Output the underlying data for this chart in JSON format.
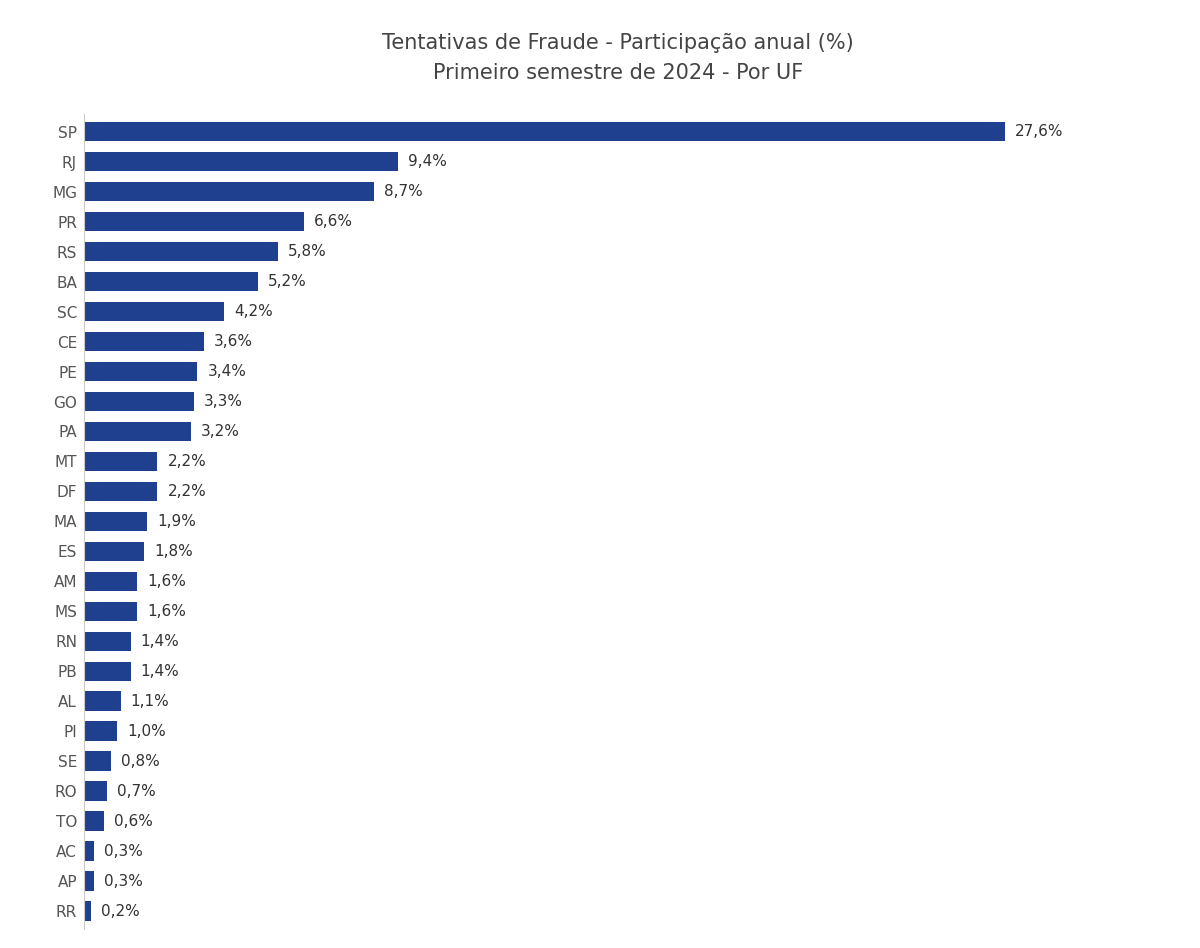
{
  "title_line1": "Tentativas de Fraude - Participação anual (%)",
  "title_line2": "Primeiro semestre de 2024 - Por UF",
  "categories": [
    "SP",
    "RJ",
    "MG",
    "PR",
    "RS",
    "BA",
    "SC",
    "CE",
    "PE",
    "GO",
    "PA",
    "MT",
    "DF",
    "MA",
    "ES",
    "AM",
    "MS",
    "RN",
    "PB",
    "AL",
    "PI",
    "SE",
    "RO",
    "TO",
    "AC",
    "AP",
    "RR"
  ],
  "values": [
    27.6,
    9.4,
    8.7,
    6.6,
    5.8,
    5.2,
    4.2,
    3.6,
    3.4,
    3.3,
    3.2,
    2.2,
    2.2,
    1.9,
    1.8,
    1.6,
    1.6,
    1.4,
    1.4,
    1.1,
    1.0,
    0.8,
    0.7,
    0.6,
    0.3,
    0.3,
    0.2
  ],
  "labels": [
    "27,6%",
    "9,4%",
    "8,7%",
    "6,6%",
    "5,8%",
    "5,2%",
    "4,2%",
    "3,6%",
    "3,4%",
    "3,3%",
    "3,2%",
    "2,2%",
    "2,2%",
    "1,9%",
    "1,8%",
    "1,6%",
    "1,6%",
    "1,4%",
    "1,4%",
    "1,1%",
    "1,0%",
    "0,8%",
    "0,7%",
    "0,6%",
    "0,3%",
    "0,3%",
    "0,2%"
  ],
  "bar_color": "#1f3f8f",
  "background_color": "#ffffff",
  "title_fontsize": 15,
  "label_fontsize": 11,
  "tick_fontsize": 11,
  "tick_color": "#555555",
  "title_color": "#444444"
}
